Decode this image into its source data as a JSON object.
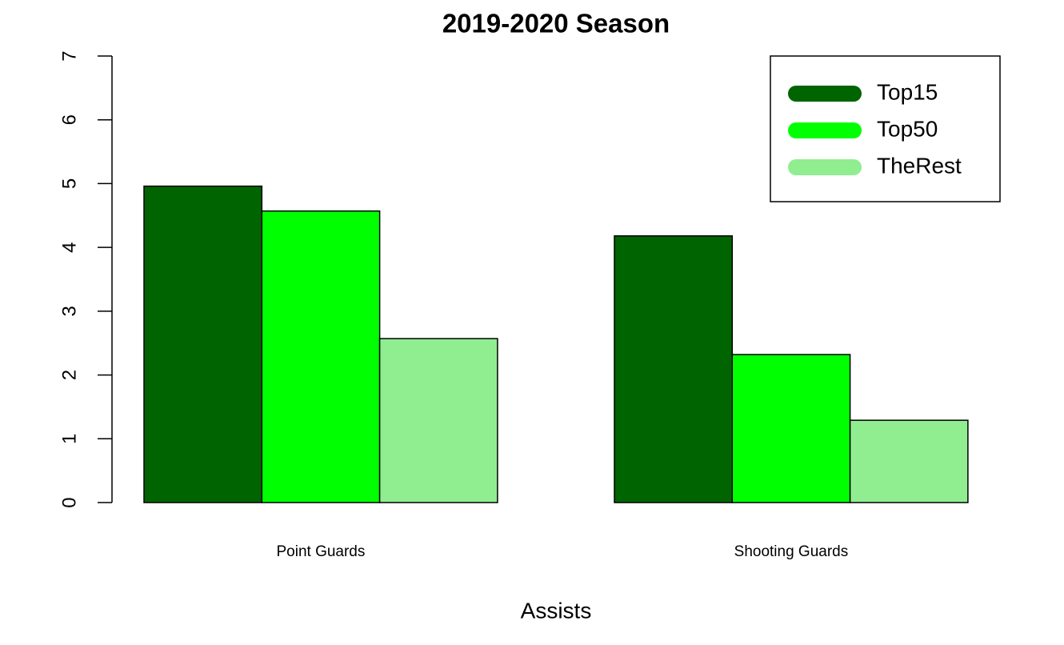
{
  "chart_data": {
    "type": "bar",
    "title": "2019-2020 Season",
    "xlabel": "Assists",
    "categories": [
      "Point Guards",
      "Shooting Guards"
    ],
    "series": [
      {
        "name": "Top15",
        "color": "#006400",
        "values": [
          4.96,
          4.18
        ]
      },
      {
        "name": "Top50",
        "color": "#00ff00",
        "values": [
          4.57,
          2.32
        ]
      },
      {
        "name": "TheRest",
        "color": "#90ee90",
        "values": [
          2.57,
          1.29
        ]
      }
    ],
    "ylim": [
      0,
      7
    ],
    "yticks": [
      0,
      1,
      2,
      3,
      4,
      5,
      6,
      7
    ],
    "legend": "topright",
    "grid": false
  }
}
